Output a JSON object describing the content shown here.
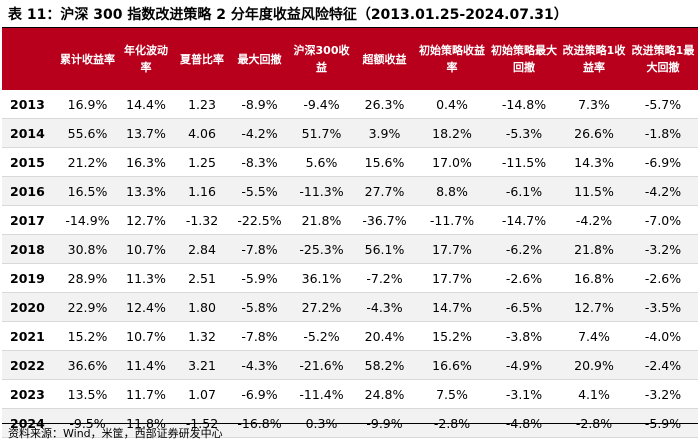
{
  "title": "表 11：沪深 300 指数改进策略 2 分年度收益风险特征（2013.01.25-2024.07.31）",
  "table": {
    "headers": [
      "",
      "累计收益率",
      "年化波动率",
      "夏普比率",
      "最大回撤",
      "沪深300收益",
      "超额收益",
      "初始策略收益率",
      "初始策略最大回撤",
      "改进策略1收益率",
      "改进策略1最大回撤"
    ],
    "rows": [
      [
        "2013",
        "16.9%",
        "14.4%",
        "1.23",
        "-8.9%",
        "-9.4%",
        "26.3%",
        "0.4%",
        "-14.8%",
        "7.3%",
        "-5.7%"
      ],
      [
        "2014",
        "55.6%",
        "13.7%",
        "4.06",
        "-4.2%",
        "51.7%",
        "3.9%",
        "18.2%",
        "-5.3%",
        "26.6%",
        "-1.8%"
      ],
      [
        "2015",
        "21.2%",
        "16.3%",
        "1.25",
        "-8.3%",
        "5.6%",
        "15.6%",
        "17.0%",
        "-11.5%",
        "14.3%",
        "-6.9%"
      ],
      [
        "2016",
        "16.5%",
        "13.3%",
        "1.16",
        "-5.5%",
        "-11.3%",
        "27.7%",
        "8.8%",
        "-6.1%",
        "11.5%",
        "-4.2%"
      ],
      [
        "2017",
        "-14.9%",
        "12.7%",
        "-1.32",
        "-22.5%",
        "21.8%",
        "-36.7%",
        "-11.7%",
        "-14.7%",
        "-4.2%",
        "-7.0%"
      ],
      [
        "2018",
        "30.8%",
        "10.7%",
        "2.84",
        "-7.8%",
        "-25.3%",
        "56.1%",
        "17.7%",
        "-6.2%",
        "21.8%",
        "-3.2%"
      ],
      [
        "2019",
        "28.9%",
        "11.3%",
        "2.51",
        "-5.9%",
        "36.1%",
        "-7.2%",
        "17.7%",
        "-2.6%",
        "16.8%",
        "-2.6%"
      ],
      [
        "2020",
        "22.9%",
        "12.4%",
        "1.80",
        "-5.8%",
        "27.2%",
        "-4.3%",
        "14.7%",
        "-6.5%",
        "12.7%",
        "-3.5%"
      ],
      [
        "2021",
        "15.2%",
        "10.7%",
        "1.32",
        "-7.8%",
        "-5.2%",
        "20.4%",
        "15.2%",
        "-3.8%",
        "7.4%",
        "-4.0%"
      ],
      [
        "2022",
        "36.6%",
        "11.4%",
        "3.21",
        "-4.3%",
        "-21.6%",
        "58.2%",
        "16.6%",
        "-4.9%",
        "20.9%",
        "-2.4%"
      ],
      [
        "2023",
        "13.5%",
        "11.7%",
        "1.07",
        "-6.9%",
        "-11.4%",
        "24.8%",
        "7.5%",
        "-3.1%",
        "4.1%",
        "-3.2%"
      ],
      [
        "2024",
        "-9.5%",
        "11.8%",
        "-1.52",
        "-16.8%",
        "0.3%",
        "-9.9%",
        "-2.8%",
        "-4.8%",
        "-2.8%",
        "-5.9%"
      ]
    ]
  },
  "source": "资料来源：Wind，米筐，西部证券研发中心"
}
